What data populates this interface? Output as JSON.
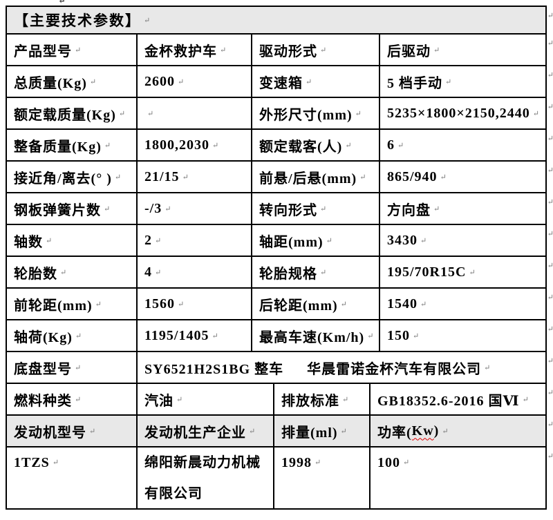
{
  "title_row": {
    "label": "【主要技术参数】"
  },
  "decorations": {
    "paragraph_mark": "↵",
    "top_artifact": "↵"
  },
  "colors": {
    "header_bg": "#e8e8e8",
    "engine_row_bg": "#e8e8e8",
    "border": "#000000",
    "spellcheck_underline": "#e00000"
  },
  "table": {
    "rows": [
      {
        "cells": [
          "产品型号",
          "金杯救护车",
          "驱动形式",
          "后驱动"
        ]
      },
      {
        "cells": [
          "总质量(Kg)",
          "2600",
          "变速箱",
          "5 档手动"
        ]
      },
      {
        "cells": [
          "额定载质量(Kg)",
          "",
          "外形尺寸(mm)",
          "5235×1800×2150,2440"
        ]
      },
      {
        "cells": [
          "整备质量(Kg)",
          "1800,2030",
          "额定载客(人)",
          "6"
        ]
      },
      {
        "cells": [
          "接近角/离去(° )",
          "21/15",
          "前悬/后悬(mm)",
          "865/940"
        ]
      },
      {
        "cells": [
          "钢板弹簧片数",
          "-/3",
          "转向形式",
          "方向盘"
        ]
      },
      {
        "cells": [
          "轴数",
          "2",
          "轴距(mm)",
          "3430"
        ]
      },
      {
        "cells": [
          "轮胎数",
          "4",
          "轮胎规格",
          "195/70R15C"
        ]
      },
      {
        "cells": [
          "前轮距(mm)",
          "1560",
          "后轮距(mm)",
          "1540"
        ]
      },
      {
        "cells": [
          "轴荷(Kg)",
          "1195/1405",
          "最高车速(Km/h)",
          "150"
        ]
      },
      {
        "label": "底盘型号",
        "value_main": "SY6521H2S1BG 整车",
        "value_company": "华晨雷诺金杯汽车有限公司"
      },
      {
        "cells": [
          "燃料种类",
          "汽油",
          "排放标准",
          "GB18352.6-2016 国Ⅵ"
        ]
      },
      {
        "cells": [
          "发动机型号",
          "发动机生产企业",
          "排量(ml)"
        ],
        "power_label": {
          "prefix": "功率(",
          "misspelled": "Kw",
          "suffix": ")"
        }
      },
      {
        "cells": [
          "1TZS",
          "绵阳新晨动力机械有限公司",
          "1998",
          "100"
        ]
      }
    ]
  }
}
